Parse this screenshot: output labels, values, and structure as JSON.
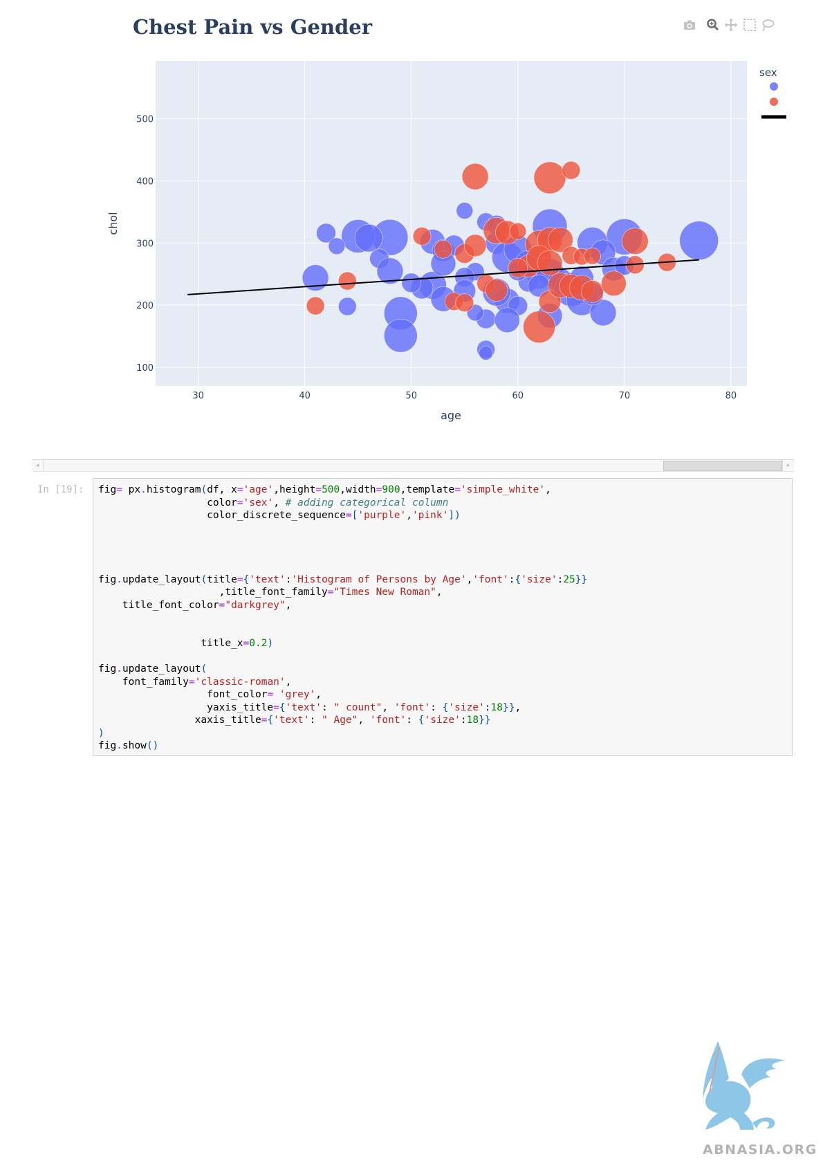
{
  "chart_data": {
    "type": "scatter",
    "title": "Chest Pain vs Gender",
    "xlabel": "age",
    "ylabel": "chol",
    "xlim": [
      26,
      81.5
    ],
    "ylim": [
      70,
      593
    ],
    "x_ticks": [
      30,
      40,
      50,
      60,
      70,
      80
    ],
    "y_ticks": [
      100,
      200,
      300,
      400,
      500
    ],
    "grid": true,
    "legend_title": "sex",
    "legend_position": "top-right",
    "colors": {
      "blue": "#636efa",
      "red": "#ef553b",
      "trend": "#000000",
      "plot_bg": "#e5ecf6"
    },
    "series": [
      {
        "color": "#636efa",
        "points": [
          [
            77,
            304,
            28
          ],
          [
            70,
            310,
            26
          ],
          [
            63,
            327,
            25
          ],
          [
            48,
            309,
            26
          ],
          [
            45,
            311,
            24
          ],
          [
            46,
            308,
            20
          ],
          [
            42,
            316,
            14
          ],
          [
            43,
            295,
            12
          ],
          [
            41,
            244,
            19
          ],
          [
            47,
            275,
            14
          ],
          [
            48,
            255,
            19
          ],
          [
            44,
            198,
            13
          ],
          [
            49,
            187,
            24
          ],
          [
            49,
            151,
            24
          ],
          [
            57,
            129,
            13
          ],
          [
            57,
            123,
            10
          ],
          [
            55,
            352,
            12
          ],
          [
            57,
            334,
            13
          ],
          [
            58,
            329,
            14
          ],
          [
            52,
            302,
            18
          ],
          [
            53,
            288,
            16
          ],
          [
            54,
            296,
            15
          ],
          [
            52,
            232,
            20
          ],
          [
            51,
            228,
            16
          ],
          [
            53,
            210,
            18
          ],
          [
            50,
            236,
            14
          ],
          [
            56,
            254,
            13
          ],
          [
            58,
            300,
            16
          ],
          [
            59,
            277,
            22
          ],
          [
            60,
            290,
            20
          ],
          [
            61,
            267,
            19
          ],
          [
            62,
            245,
            17
          ],
          [
            63,
            253,
            20
          ],
          [
            64,
            239,
            18
          ],
          [
            65,
            225,
            24
          ],
          [
            66,
            208,
            22
          ],
          [
            67,
            301,
            22
          ],
          [
            68,
            285,
            18
          ],
          [
            69,
            258,
            17
          ],
          [
            70,
            264,
            14
          ],
          [
            66,
            244,
            17
          ],
          [
            59,
            207,
            18
          ],
          [
            58,
            221,
            20
          ],
          [
            60,
            199,
            14
          ],
          [
            61,
            238,
            15
          ],
          [
            57,
            178,
            14
          ],
          [
            56,
            188,
            12
          ],
          [
            63,
            183,
            18
          ],
          [
            68,
            188,
            19
          ],
          [
            67,
            218,
            16
          ],
          [
            55,
            245,
            14
          ],
          [
            59,
            176,
            18
          ],
          [
            62,
            231,
            16
          ],
          [
            53,
            267,
            18
          ],
          [
            55,
            223,
            16
          ],
          [
            60,
            255,
            14
          ]
        ]
      },
      {
        "color": "#ef553b",
        "points": [
          [
            41,
            199,
            13
          ],
          [
            44,
            239,
            13
          ],
          [
            51,
            311,
            13
          ],
          [
            56,
            407,
            19
          ],
          [
            63,
            405,
            23
          ],
          [
            65,
            417,
            13
          ],
          [
            53,
            290,
            13
          ],
          [
            55,
            283,
            14
          ],
          [
            56,
            296,
            16
          ],
          [
            58,
            320,
            19
          ],
          [
            59,
            317,
            17
          ],
          [
            60,
            319,
            12
          ],
          [
            62,
            298,
            20
          ],
          [
            63,
            305,
            18
          ],
          [
            64,
            305,
            18
          ],
          [
            65,
            280,
            13
          ],
          [
            66,
            278,
            12
          ],
          [
            67,
            279,
            12
          ],
          [
            61,
            263,
            16
          ],
          [
            62,
            276,
            18
          ],
          [
            63,
            268,
            18
          ],
          [
            60,
            260,
            14
          ],
          [
            71,
            303,
            19
          ],
          [
            71,
            265,
            13
          ],
          [
            74,
            269,
            13
          ],
          [
            57,
            235,
            13
          ],
          [
            58,
            224,
            16
          ],
          [
            54,
            206,
            13
          ],
          [
            55,
            204,
            13
          ],
          [
            62,
            165,
            23
          ],
          [
            63,
            206,
            16
          ],
          [
            64,
            232,
            18
          ],
          [
            65,
            231,
            17
          ],
          [
            66,
            228,
            18
          ],
          [
            67,
            222,
            16
          ],
          [
            69,
            235,
            18
          ]
        ]
      }
    ],
    "trendline": {
      "color": "#000000",
      "points": [
        [
          29,
          217
        ],
        [
          77,
          273
        ]
      ]
    }
  },
  "toolbar": {
    "icons": [
      "camera-icon",
      "zoom-icon",
      "pan-icon",
      "box-select-icon",
      "lasso-icon"
    ]
  },
  "cell": {
    "prompt": "In [19]:"
  }
}
